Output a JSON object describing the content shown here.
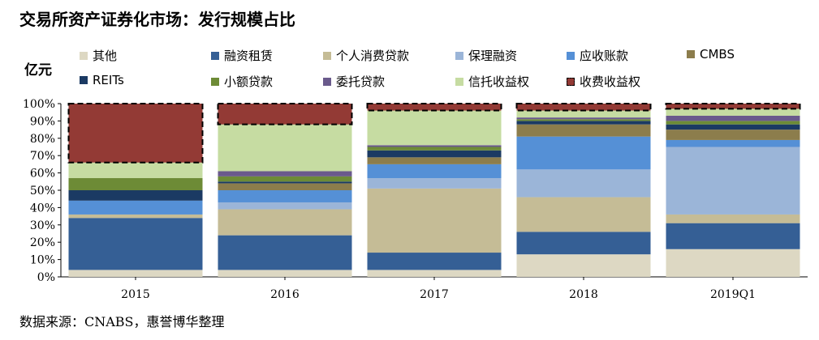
{
  "title": "交易所资产证券化市场：发行规模占比",
  "unit": "亿元",
  "source": "数据来源：CNABS，惠誉博华整理",
  "chart_data": {
    "type": "bar",
    "stacked": true,
    "percent": true,
    "categories": [
      "2015",
      "2016",
      "2017",
      "2018",
      "2019Q1"
    ],
    "ylim": [
      0,
      100
    ],
    "yticks": [
      "0%",
      "10%",
      "20%",
      "30%",
      "40%",
      "50%",
      "60%",
      "70%",
      "80%",
      "90%",
      "100%"
    ],
    "legend_placement": "top",
    "series": [
      {
        "name": "其他",
        "color": "#DDD8C3",
        "values": [
          4,
          4,
          4,
          13,
          16
        ],
        "dashed": false
      },
      {
        "name": "融资租赁",
        "color": "#355F95",
        "values": [
          30,
          20,
          10,
          13,
          15
        ],
        "dashed": false
      },
      {
        "name": "个人消费贷款",
        "color": "#C5BC96",
        "values": [
          2,
          15,
          37,
          20,
          5
        ],
        "dashed": false
      },
      {
        "name": "保理融资",
        "color": "#9BB5D8",
        "values": [
          0,
          4,
          6,
          16,
          39
        ],
        "dashed": false
      },
      {
        "name": "应收账款",
        "color": "#5590D6",
        "values": [
          8,
          7,
          8,
          19,
          4
        ],
        "dashed": false
      },
      {
        "name": "CMBS",
        "color": "#8C7D4C",
        "values": [
          0,
          4,
          4,
          7,
          6
        ],
        "dashed": false
      },
      {
        "name": "REITs",
        "color": "#1B3A63",
        "values": [
          6,
          1,
          4,
          2,
          3
        ],
        "dashed": false
      },
      {
        "name": "小额贷款",
        "color": "#6D8B36",
        "values": [
          7,
          3,
          2,
          1,
          2
        ],
        "dashed": false
      },
      {
        "name": "委托贷款",
        "color": "#6A5A8C",
        "values": [
          0,
          3,
          1,
          1,
          3
        ],
        "dashed": false
      },
      {
        "name": "信托收益权",
        "color": "#C6DCA2",
        "values": [
          9,
          27,
          20,
          4,
          4
        ],
        "dashed": false
      },
      {
        "name": "收费收益权",
        "color": "#933A35",
        "values": [
          34,
          12,
          4,
          4,
          3
        ],
        "dashed": true
      }
    ]
  }
}
